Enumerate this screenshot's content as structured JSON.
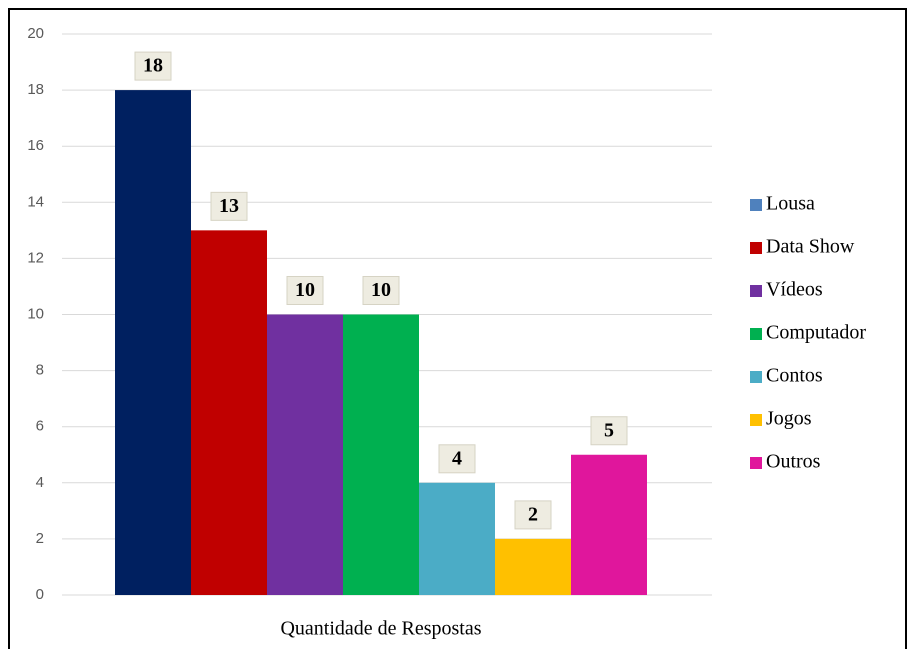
{
  "chart_data": {
    "type": "bar",
    "categories": [
      "Quantidade de Respostas"
    ],
    "series": [
      {
        "name": "Lousa",
        "color": "#002060",
        "legend_color": "#4f81bd",
        "values": [
          18
        ]
      },
      {
        "name": "Data Show",
        "color": "#c00000",
        "values": [
          13
        ]
      },
      {
        "name": "Vídeos",
        "color": "#7030a0",
        "values": [
          10
        ]
      },
      {
        "name": "Computador",
        "color": "#00b050",
        "values": [
          10
        ]
      },
      {
        "name": "Contos",
        "color": "#4bacc6",
        "values": [
          4
        ]
      },
      {
        "name": "Jogos",
        "color": "#ffc000",
        "values": [
          2
        ]
      },
      {
        "name": "Outros",
        "color": "#e0169c",
        "values": [
          5
        ]
      }
    ],
    "ylim": [
      0,
      20
    ],
    "yticks": [
      0,
      2,
      4,
      6,
      8,
      10,
      12,
      14,
      16,
      18,
      20
    ],
    "grid": true,
    "legend": "right",
    "data_labels": true
  }
}
